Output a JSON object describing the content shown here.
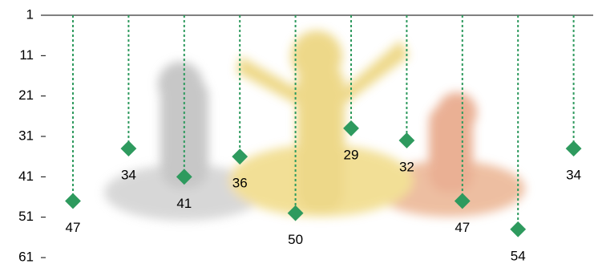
{
  "chart_data": {
    "type": "dropline",
    "values": [
      47,
      34,
      41,
      36,
      50,
      29,
      32,
      47,
      54,
      34
    ],
    "color": "#2e9a5e",
    "ylim": [
      1,
      61
    ],
    "yticks": [
      1,
      11,
      21,
      31,
      41,
      51,
      61
    ],
    "y_inverted": true
  }
}
